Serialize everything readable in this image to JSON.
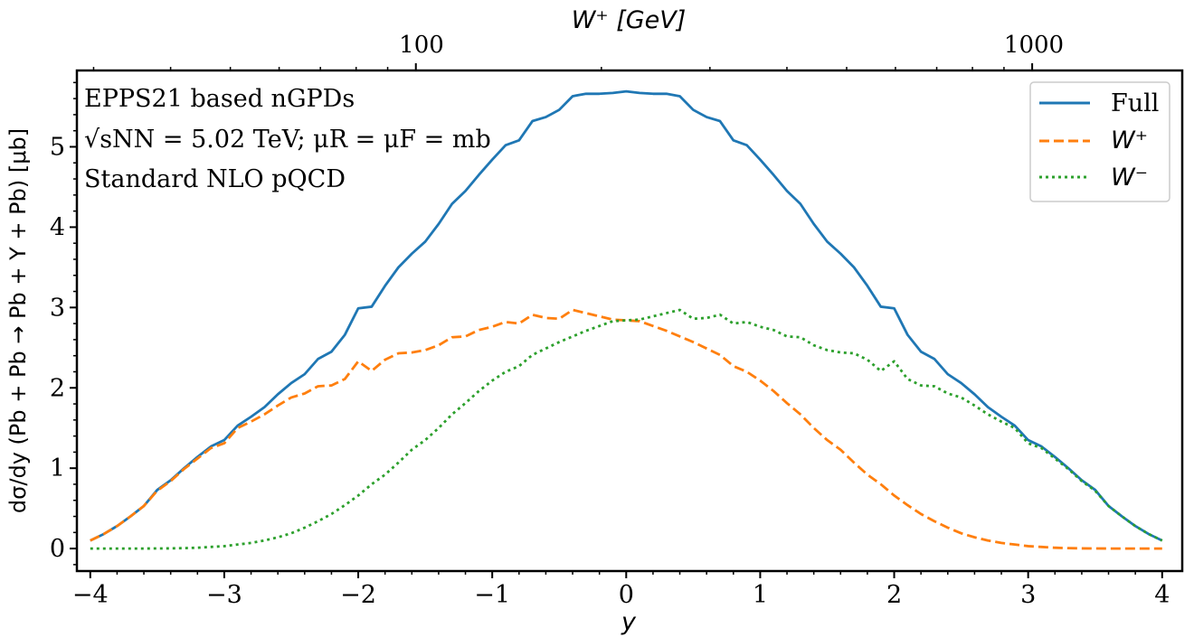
{
  "chart_data": {
    "type": "line",
    "xlabel": "y",
    "ylabel": "dσ/dy (Pb + Pb → Pb + Y + Pb) [μb]",
    "top_axis_label": "W⁺ [GeV]",
    "top_axis_tick_labels": [
      "100",
      "1000"
    ],
    "xlim": [
      -4.1,
      4.15
    ],
    "ylim": [
      -0.28,
      5.95
    ],
    "xticks": [
      -4,
      -3,
      -2,
      -1,
      0,
      1,
      2,
      3,
      4
    ],
    "xtick_labels": [
      "−4",
      "−3",
      "−2",
      "−1",
      "0",
      "1",
      "2",
      "3",
      "4"
    ],
    "yticks": [
      0,
      1,
      2,
      3,
      4,
      5
    ],
    "ytick_labels": [
      "0",
      "1",
      "2",
      "3",
      "4",
      "5"
    ],
    "annotations": [
      "EPPS21 based nGPDs",
      "√sNN = 5.02 TeV; μR = μF = mb",
      "Standard NLO pQCD"
    ],
    "legend": {
      "placement": "top-right",
      "entries": [
        "Full",
        "W⁺",
        "W⁻"
      ]
    },
    "series": [
      {
        "name": "Full",
        "color": "#1f77b4",
        "style": "solid",
        "x": [
          -4.0,
          -3.9,
          -3.8,
          -3.7,
          -3.6,
          -3.5,
          -3.4,
          -3.3,
          -3.2,
          -3.1,
          -3.0,
          -2.9,
          -2.8,
          -2.7,
          -2.6,
          -2.5,
          -2.4,
          -2.3,
          -2.2,
          -2.1,
          -2.0,
          -1.9,
          -1.8,
          -1.7,
          -1.6,
          -1.5,
          -1.4,
          -1.3,
          -1.2,
          -1.1,
          -1.0,
          -0.9,
          -0.8,
          -0.7,
          -0.6,
          -0.5,
          -0.4,
          -0.3,
          -0.2,
          -0.1,
          0.0,
          0.1,
          0.2,
          0.3,
          0.4,
          0.5,
          0.6,
          0.7,
          0.8,
          0.9,
          1.0,
          1.1,
          1.2,
          1.3,
          1.4,
          1.5,
          1.6,
          1.7,
          1.8,
          1.9,
          2.0,
          2.1,
          2.2,
          2.3,
          2.4,
          2.5,
          2.6,
          2.7,
          2.8,
          2.9,
          3.0,
          3.1,
          3.2,
          3.3,
          3.4,
          3.5,
          3.6,
          3.7,
          3.8,
          3.9,
          4.0
        ],
        "y": [
          0.1,
          0.18,
          0.28,
          0.4,
          0.53,
          0.73,
          0.85,
          1.0,
          1.14,
          1.27,
          1.35,
          1.53,
          1.64,
          1.76,
          1.92,
          2.06,
          2.17,
          2.36,
          2.45,
          2.66,
          2.99,
          3.01,
          3.27,
          3.5,
          3.67,
          3.82,
          4.04,
          4.29,
          4.45,
          4.65,
          4.84,
          5.02,
          5.08,
          5.32,
          5.37,
          5.46,
          5.63,
          5.66,
          5.66,
          5.67,
          5.69,
          5.67,
          5.66,
          5.66,
          5.63,
          5.46,
          5.37,
          5.32,
          5.08,
          5.02,
          4.84,
          4.65,
          4.45,
          4.29,
          4.04,
          3.82,
          3.67,
          3.5,
          3.27,
          3.01,
          2.99,
          2.66,
          2.45,
          2.36,
          2.17,
          2.06,
          1.92,
          1.76,
          1.64,
          1.53,
          1.35,
          1.27,
          1.14,
          1.0,
          0.85,
          0.73,
          0.53,
          0.4,
          0.28,
          0.18,
          0.1
        ]
      },
      {
        "name": "W⁺",
        "color": "#ff7f0e",
        "style": "dashed",
        "x": [
          -4.0,
          -3.9,
          -3.8,
          -3.7,
          -3.6,
          -3.5,
          -3.4,
          -3.3,
          -3.2,
          -3.1,
          -3.0,
          -2.9,
          -2.8,
          -2.7,
          -2.6,
          -2.5,
          -2.4,
          -2.3,
          -2.2,
          -2.1,
          -2.0,
          -1.9,
          -1.8,
          -1.7,
          -1.6,
          -1.5,
          -1.4,
          -1.3,
          -1.2,
          -1.1,
          -1.0,
          -0.9,
          -0.8,
          -0.7,
          -0.6,
          -0.5,
          -0.4,
          -0.3,
          -0.2,
          -0.1,
          0.0,
          0.1,
          0.2,
          0.3,
          0.4,
          0.5,
          0.6,
          0.7,
          0.8,
          0.9,
          1.0,
          1.1,
          1.2,
          1.3,
          1.4,
          1.5,
          1.6,
          1.7,
          1.8,
          1.9,
          2.0,
          2.1,
          2.2,
          2.3,
          2.4,
          2.5,
          2.6,
          2.7,
          2.8,
          2.9,
          3.0,
          3.1,
          3.2,
          3.3,
          3.4,
          3.5,
          3.6,
          3.7,
          3.8,
          3.9,
          4.0
        ],
        "y": [
          0.1,
          0.18,
          0.28,
          0.4,
          0.53,
          0.72,
          0.84,
          0.99,
          1.12,
          1.25,
          1.31,
          1.5,
          1.58,
          1.67,
          1.78,
          1.88,
          1.93,
          2.02,
          2.03,
          2.11,
          2.33,
          2.21,
          2.35,
          2.43,
          2.44,
          2.47,
          2.53,
          2.63,
          2.64,
          2.72,
          2.76,
          2.82,
          2.8,
          2.91,
          2.87,
          2.86,
          2.97,
          2.93,
          2.89,
          2.85,
          2.84,
          2.83,
          2.77,
          2.71,
          2.64,
          2.57,
          2.49,
          2.41,
          2.27,
          2.2,
          2.09,
          1.96,
          1.81,
          1.67,
          1.5,
          1.35,
          1.23,
          1.07,
          0.92,
          0.8,
          0.66,
          0.54,
          0.43,
          0.34,
          0.26,
          0.19,
          0.14,
          0.1,
          0.07,
          0.05,
          0.03,
          0.02,
          0.01,
          0.005,
          0.002,
          0.001,
          0.0,
          0.0,
          0.0,
          0.0,
          0.0
        ]
      },
      {
        "name": "W⁻",
        "color": "#2ca02c",
        "style": "dotted",
        "x": [
          -4.0,
          -3.9,
          -3.8,
          -3.7,
          -3.6,
          -3.5,
          -3.4,
          -3.3,
          -3.2,
          -3.1,
          -3.0,
          -2.9,
          -2.8,
          -2.7,
          -2.6,
          -2.5,
          -2.4,
          -2.3,
          -2.2,
          -2.1,
          -2.0,
          -1.9,
          -1.8,
          -1.7,
          -1.6,
          -1.5,
          -1.4,
          -1.3,
          -1.2,
          -1.1,
          -1.0,
          -0.9,
          -0.8,
          -0.7,
          -0.6,
          -0.5,
          -0.4,
          -0.3,
          -0.2,
          -0.1,
          0.0,
          0.1,
          0.2,
          0.3,
          0.4,
          0.5,
          0.6,
          0.7,
          0.8,
          0.9,
          1.0,
          1.1,
          1.2,
          1.3,
          1.4,
          1.5,
          1.6,
          1.7,
          1.8,
          1.9,
          2.0,
          2.1,
          2.2,
          2.3,
          2.4,
          2.5,
          2.6,
          2.7,
          2.8,
          2.9,
          3.0,
          3.1,
          3.2,
          3.3,
          3.4,
          3.5,
          3.6,
          3.7,
          3.8,
          3.9,
          4.0
        ],
        "y": [
          0.0,
          0.0,
          0.0,
          0.0,
          0.0,
          0.001,
          0.002,
          0.005,
          0.01,
          0.02,
          0.03,
          0.05,
          0.07,
          0.1,
          0.14,
          0.19,
          0.26,
          0.34,
          0.43,
          0.54,
          0.66,
          0.8,
          0.92,
          1.07,
          1.23,
          1.35,
          1.5,
          1.67,
          1.81,
          1.96,
          2.09,
          2.2,
          2.27,
          2.41,
          2.49,
          2.57,
          2.64,
          2.71,
          2.77,
          2.83,
          2.84,
          2.85,
          2.89,
          2.93,
          2.97,
          2.86,
          2.87,
          2.91,
          2.8,
          2.82,
          2.76,
          2.72,
          2.64,
          2.63,
          2.53,
          2.47,
          2.44,
          2.43,
          2.35,
          2.21,
          2.33,
          2.11,
          2.03,
          2.02,
          1.93,
          1.88,
          1.78,
          1.67,
          1.58,
          1.5,
          1.31,
          1.25,
          1.12,
          0.99,
          0.84,
          0.72,
          0.53,
          0.4,
          0.28,
          0.18,
          0.1
        ]
      }
    ]
  }
}
